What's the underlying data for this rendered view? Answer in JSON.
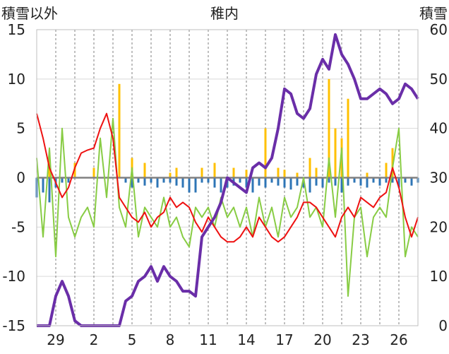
{
  "chart_data": {
    "type": "line",
    "title": "稚内",
    "ylabel_left": "積雪以外",
    "ylabel_right": "積雪",
    "y_left": {
      "min": -15,
      "max": 15,
      "ticks": [
        -15,
        -10,
        -5,
        0,
        5,
        10,
        15
      ]
    },
    "y_right": {
      "min": 0,
      "max": 60,
      "ticks": [
        0,
        10,
        20,
        30,
        40,
        50,
        60
      ]
    },
    "x": {
      "min": 0,
      "max": 60,
      "tick_positions": [
        3,
        9,
        15,
        21,
        27,
        33,
        39,
        45,
        51,
        57
      ],
      "tick_labels": [
        "29",
        "2",
        "5",
        "8",
        "11",
        "14",
        "17",
        "20",
        "23",
        "26"
      ]
    },
    "grid": "dashed-vertical",
    "colors": {
      "temperature": "#ee1111",
      "wind": "#88cc44",
      "snow_depth": "#6a2ea8",
      "precip_positive": "#ffc000",
      "precip_negative": "#2e75b6",
      "zero_line": "#808080"
    },
    "series": [
      {
        "key": "temperature",
        "x": [
          0,
          1,
          2,
          3,
          4,
          5,
          6,
          7,
          8,
          9,
          10,
          11,
          12,
          13,
          14,
          15,
          16,
          17,
          18,
          19,
          20,
          21,
          22,
          23,
          24,
          25,
          26,
          27,
          28,
          29,
          30,
          31,
          32,
          33,
          34,
          35,
          36,
          37,
          38,
          39,
          40,
          41,
          42,
          43,
          44,
          45,
          46,
          47,
          48,
          49,
          50,
          51,
          52,
          53,
          54,
          55,
          56,
          57,
          58,
          59,
          60
        ],
        "y": [
          6.5,
          4,
          1,
          -0.5,
          -2,
          -1,
          1,
          2.5,
          2.8,
          3,
          5,
          6.5,
          4,
          -2,
          -3,
          -4,
          -4.5,
          -3.5,
          -5,
          -4,
          -3.5,
          -2,
          -3,
          -2.5,
          -3,
          -4.5,
          -5.5,
          -4,
          -5,
          -6,
          -6.5,
          -6.5,
          -6,
          -5,
          -6,
          -4,
          -5,
          -6,
          -6.5,
          -6,
          -5,
          -4,
          -2.5,
          -2.5,
          -3,
          -4,
          -5,
          -6,
          -4,
          -3,
          -4,
          -2,
          -2.5,
          -3,
          -2,
          -1.5,
          1,
          -1,
          -4,
          -6,
          -4
        ]
      },
      {
        "key": "wind",
        "x": [
          0,
          1,
          2,
          3,
          4,
          5,
          6,
          7,
          8,
          9,
          10,
          11,
          12,
          13,
          14,
          15,
          16,
          17,
          18,
          19,
          20,
          21,
          22,
          23,
          24,
          25,
          26,
          27,
          28,
          29,
          30,
          31,
          32,
          33,
          34,
          35,
          36,
          37,
          38,
          39,
          40,
          41,
          42,
          43,
          44,
          45,
          46,
          47,
          48,
          49,
          50,
          51,
          52,
          53,
          54,
          55,
          56,
          57,
          58,
          59,
          60
        ],
        "y": [
          2,
          -6,
          3,
          -8,
          5,
          -4,
          -6,
          -4,
          -3,
          -5,
          4,
          -2,
          6,
          -3,
          -5,
          1,
          -6,
          -3,
          -4,
          -5,
          -2,
          -5,
          -4,
          -6,
          -7,
          -3,
          -4,
          -3,
          -5,
          -2,
          -4,
          -3,
          -5,
          -3,
          -6,
          -2,
          -5,
          -3,
          -6,
          -2,
          -4,
          -3,
          0,
          -4,
          -3,
          -5,
          2,
          -4,
          3,
          -12,
          -4,
          -3,
          -8,
          -4,
          -3,
          -4,
          1,
          5,
          -8,
          -5,
          -6
        ]
      },
      {
        "key": "snow_depth",
        "x": [
          0,
          1,
          2,
          3,
          4,
          5,
          6,
          7,
          8,
          9,
          10,
          11,
          12,
          13,
          14,
          15,
          16,
          17,
          18,
          19,
          20,
          21,
          22,
          23,
          24,
          25,
          26,
          27,
          28,
          29,
          30,
          31,
          32,
          33,
          34,
          35,
          36,
          37,
          38,
          39,
          40,
          41,
          42,
          43,
          44,
          45,
          46,
          47,
          48,
          49,
          50,
          51,
          52,
          53,
          54,
          55,
          56,
          57,
          58,
          59,
          60
        ],
        "y": [
          0,
          0,
          0,
          6,
          9,
          6,
          1,
          0,
          0,
          0,
          0,
          0,
          0,
          0,
          5,
          6,
          9,
          10,
          12,
          9,
          12,
          10,
          9,
          7,
          7,
          6,
          18,
          20,
          22,
          25,
          30,
          29,
          28,
          27,
          32,
          33,
          32,
          34,
          40,
          48,
          47,
          43,
          42,
          44,
          51,
          54,
          52,
          59,
          55,
          53,
          50,
          46,
          46,
          47,
          48,
          47,
          45,
          46,
          49,
          48,
          46
        ]
      }
    ],
    "precipitation": {
      "x": [
        2,
        6,
        9,
        13,
        15,
        17,
        21,
        22,
        26,
        28,
        31,
        33,
        36,
        38,
        39,
        41,
        43,
        44,
        46,
        47,
        48,
        49,
        52,
        55,
        56
      ],
      "y": [
        2.5,
        1.5,
        1,
        9.5,
        2,
        1.5,
        0.5,
        1,
        1,
        1.5,
        1,
        0.8,
        5,
        1,
        0.8,
        0.5,
        2,
        1,
        10,
        5,
        4,
        8,
        0.5,
        1.5,
        3
      ]
    },
    "negative_bars": {
      "x": [
        0,
        1,
        2,
        3,
        4,
        5,
        14,
        15,
        16,
        17,
        18,
        19,
        20,
        21,
        22,
        23,
        24,
        25,
        26,
        27,
        28,
        29,
        30,
        31,
        32,
        33,
        34,
        35,
        36,
        37,
        38,
        39,
        40,
        41,
        42,
        43,
        44,
        45,
        46,
        47,
        48,
        49,
        50,
        51,
        52,
        53,
        54,
        55,
        56,
        57,
        58,
        59,
        60
      ],
      "y": [
        -2,
        -1.5,
        -2.5,
        -1,
        -0.5,
        -0.5,
        -0.5,
        -1,
        -0.5,
        -0.8,
        -0.5,
        -1,
        -0.5,
        -0.5,
        -0.8,
        -1,
        -1.5,
        -1.5,
        -0.5,
        -0.5,
        -1,
        -1.5,
        -1,
        -0.8,
        -0.5,
        -1,
        -1.5,
        -0.8,
        -1,
        -0.5,
        -0.8,
        -1,
        -1.2,
        -0.8,
        -1,
        -1.5,
        -0.8,
        -1,
        -0.5,
        -0.8,
        -1.5,
        -0.8,
        -0.5,
        -0.8,
        -1,
        -0.5,
        -0.8,
        -0.5,
        -0.5,
        -1,
        -0.5,
        -0.8,
        -0.5
      ]
    }
  }
}
